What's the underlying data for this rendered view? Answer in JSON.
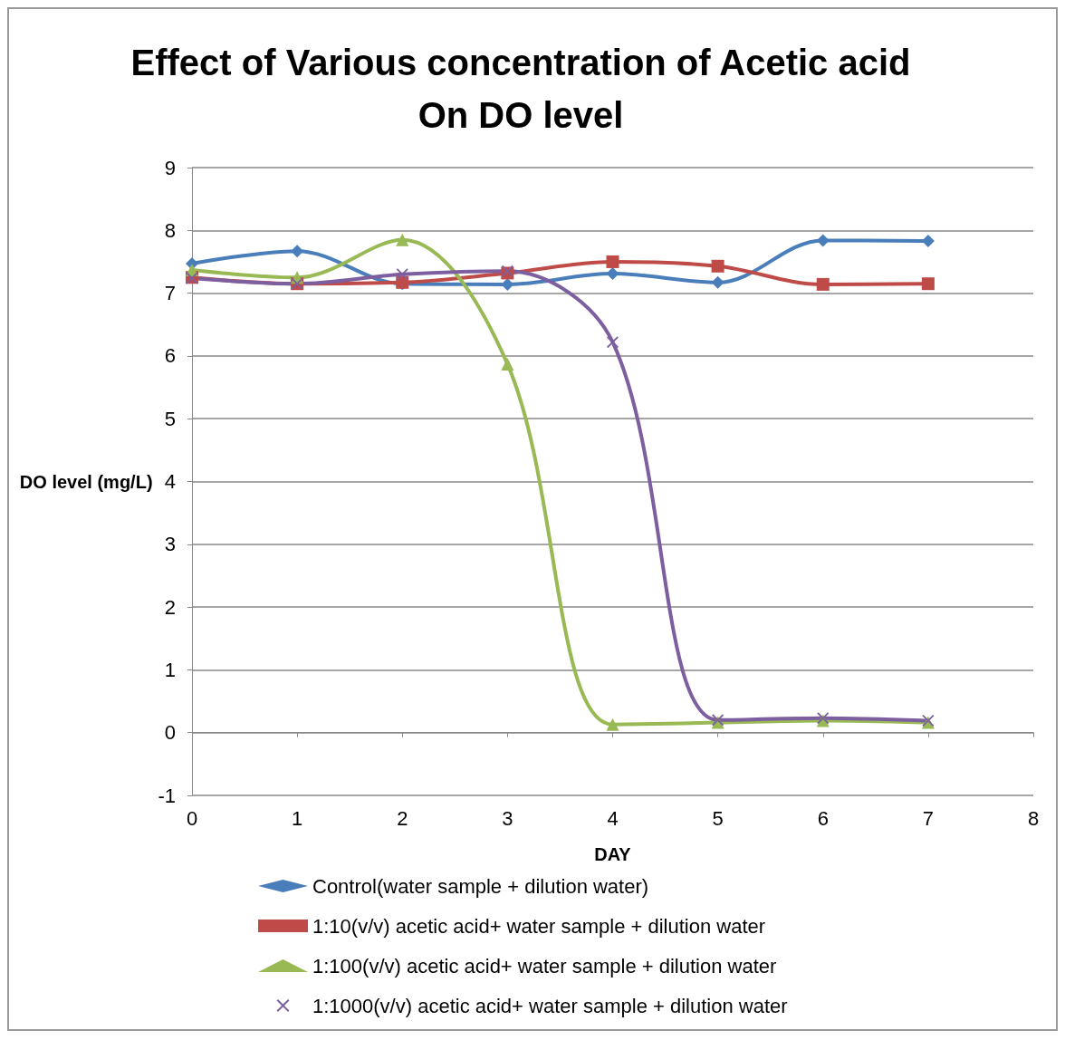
{
  "chart_data": {
    "type": "line",
    "title": "Effect of Various concentration of Acetic acid\nOn DO level",
    "xlabel": "DAY",
    "ylabel": "DO level (mg/L)",
    "x": [
      0,
      1,
      2,
      3,
      4,
      5,
      6,
      7
    ],
    "xlim": [
      0,
      8
    ],
    "xticks": [
      0,
      1,
      2,
      3,
      4,
      5,
      6,
      7,
      8
    ],
    "ylim": [
      -1,
      9
    ],
    "yticks": [
      -1,
      0,
      1,
      2,
      3,
      4,
      5,
      6,
      7,
      8,
      9
    ],
    "grid": "y",
    "legend": "bottom",
    "line_style": "solid",
    "series": [
      {
        "name": "Control(water sample + dilution water)",
        "color": "#4a7ebb",
        "marker": "diamond",
        "values": [
          7.47,
          7.67,
          7.15,
          7.14,
          7.31,
          7.17,
          7.84,
          7.83
        ]
      },
      {
        "name": "1:10(v/v) acetic acid+ water sample + dilution water",
        "color": "#be4b48",
        "marker": "square",
        "values": [
          7.25,
          7.15,
          7.17,
          7.32,
          7.5,
          7.43,
          7.14,
          7.15
        ]
      },
      {
        "name": "1:100(v/v) acetic acid+ water sample + dilution water",
        "color": "#98b954",
        "marker": "triangle",
        "values": [
          7.37,
          7.25,
          7.85,
          5.87,
          0.13,
          0.16,
          0.19,
          0.16
        ]
      },
      {
        "name": "1:1000(v/v) acetic acid+ water sample + dilution water",
        "color": "#7d5fa0",
        "marker": "cross",
        "values": [
          7.24,
          7.15,
          7.3,
          7.35,
          6.22,
          0.2,
          0.23,
          0.19
        ]
      }
    ]
  }
}
